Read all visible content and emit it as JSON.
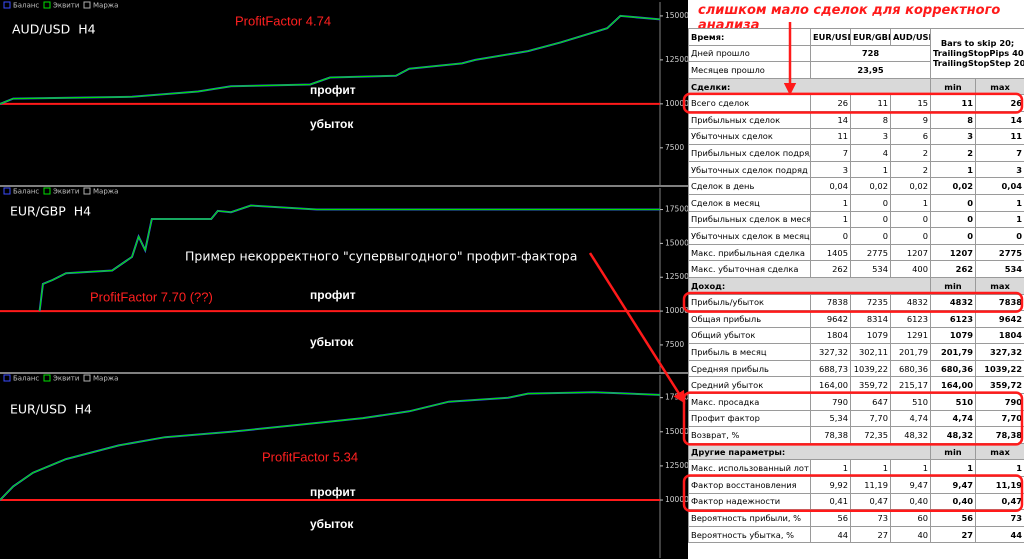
{
  "chart_data": [
    {
      "type": "line",
      "title": "AUD/USD  H4",
      "annotations": [
        "ProfitFactor 4.74",
        "профит",
        "убыток"
      ],
      "x": [
        0,
        2,
        20,
        30,
        35,
        47,
        50,
        60,
        62,
        70,
        72,
        80,
        85,
        92,
        94,
        100
      ],
      "xlim": [
        0,
        100
      ],
      "ylim": [
        5500,
        15450
      ],
      "yticks": [
        7500,
        10000,
        12500,
        15000
      ],
      "reference_line": 10000,
      "reference_color": "#ff1a1a",
      "series": [
        {
          "name": "Баланс",
          "color": "#3a4cff",
          "values": [
            10000,
            10300,
            10400,
            10700,
            11000,
            11100,
            11500,
            11600,
            12000,
            12300,
            12500,
            13000,
            13500,
            14300,
            15000,
            14800
          ]
        },
        {
          "name": "Эквити",
          "color": "#00e000",
          "values": [
            10000,
            10300,
            10400,
            10700,
            11000,
            11100,
            11500,
            11600,
            12000,
            12300,
            12500,
            13000,
            13500,
            14300,
            15000,
            14800
          ]
        }
      ],
      "extra_legend": [
        {
          "name": "Маржа",
          "color": "#b0b0b0"
        }
      ]
    },
    {
      "type": "line",
      "title": "EUR/GBP  H4",
      "annotations": [
        "ProfitFactor 7.70 (??)",
        "профит",
        "убыток"
      ],
      "x": [
        6,
        6.5,
        8,
        10,
        17,
        20,
        21,
        22,
        23,
        32,
        33,
        35,
        38,
        48,
        100
      ],
      "xlim": [
        0,
        100
      ],
      "ylim": [
        5500,
        18500
      ],
      "yticks": [
        7500,
        10000,
        12500,
        15000,
        17500
      ],
      "reference_line": 10000,
      "reference_color": "#ff1a1a",
      "series": [
        {
          "name": "Баланс",
          "color": "#3a4cff",
          "values": [
            10000,
            12000,
            12300,
            12800,
            13000,
            14000,
            15500,
            14500,
            16800,
            16800,
            17400,
            17300,
            17800,
            17500,
            17500
          ]
        },
        {
          "name": "Эквити",
          "color": "#00e000",
          "values": [
            10000,
            12000,
            12300,
            12800,
            13000,
            14000,
            15500,
            14500,
            16800,
            16800,
            17400,
            17300,
            17800,
            17500,
            17500
          ]
        }
      ],
      "extra_legend": [
        {
          "name": "Маржа",
          "color": "#b0b0b0"
        }
      ]
    },
    {
      "type": "line",
      "title": "EUR/USD  H4",
      "annotations": [
        "ProfitFactor 5.34",
        "профит",
        "убыток"
      ],
      "x": [
        0,
        2,
        5,
        10,
        18,
        25,
        35,
        45,
        55,
        62,
        68,
        77,
        80,
        90,
        100
      ],
      "xlim": [
        0,
        100
      ],
      "ylim": [
        5900,
        18500
      ],
      "yticks": [
        10000,
        12500,
        15000,
        17500
      ],
      "reference_line": 10000,
      "reference_color": "#ff1a1a",
      "series": [
        {
          "name": "Баланс",
          "color": "#3a4cff",
          "values": [
            10000,
            11000,
            12000,
            13000,
            14000,
            14600,
            15000,
            15500,
            16000,
            16500,
            17200,
            17500,
            17800,
            17900,
            17700
          ]
        },
        {
          "name": "Эквити",
          "color": "#00e000",
          "values": [
            10000,
            11000,
            12000,
            13000,
            14000,
            14600,
            15000,
            15500,
            16000,
            16500,
            17200,
            17500,
            17800,
            17900,
            17700
          ]
        }
      ],
      "extra_legend": [
        {
          "name": "Маржа",
          "color": "#b0b0b0"
        }
      ]
    }
  ],
  "note": "Пример некорректного \"супервыгодного\" профит-фактора",
  "table_note": "слишком мало сделок для корректного анализа",
  "table": {
    "header": [
      "Время:",
      "EUR/USD",
      "EUR/GBP",
      "AUD/USD"
    ],
    "settings": [
      "Bars to skip 20;",
      "TrailingStopPips 40;",
      "TrailingStopStep 20"
    ],
    "summary": [
      [
        "Дней прошло",
        "728"
      ],
      [
        "Месяцев прошло",
        "23,95"
      ]
    ],
    "sections": [
      {
        "title": "Сделки:",
        "min": "min",
        "max": "max",
        "rows": [
          [
            "Всего сделок",
            "26",
            "11",
            "15",
            "11",
            "26"
          ],
          [
            "Прибыльных сделок",
            "14",
            "8",
            "9",
            "8",
            "14"
          ],
          [
            "Убыточных сделок",
            "11",
            "3",
            "6",
            "3",
            "11"
          ],
          [
            "Прибыльных сделок подряд",
            "7",
            "4",
            "2",
            "2",
            "7"
          ],
          [
            "Убыточных сделок подряд",
            "3",
            "1",
            "2",
            "1",
            "3"
          ],
          [
            "Сделок в день",
            "0,04",
            "0,02",
            "0,02",
            "0,02",
            "0,04"
          ],
          [
            "Сделок в месяц",
            "1",
            "0",
            "1",
            "0",
            "1"
          ],
          [
            "Прибыльных сделок в месяц",
            "1",
            "0",
            "0",
            "0",
            "1"
          ],
          [
            "Убыточных сделок в месяц",
            "0",
            "0",
            "0",
            "0",
            "0"
          ],
          [
            "Макс. прибыльная сделка",
            "1405",
            "2775",
            "1207",
            "1207",
            "2775"
          ],
          [
            "Макс. убыточная сделка",
            "262",
            "534",
            "400",
            "262",
            "534"
          ]
        ]
      },
      {
        "title": "Доход:",
        "min": "min",
        "max": "max",
        "rows": [
          [
            "Прибыль/убыток",
            "7838",
            "7235",
            "4832",
            "4832",
            "7838"
          ],
          [
            "Общая прибыль",
            "9642",
            "8314",
            "6123",
            "6123",
            "9642"
          ],
          [
            "Общий убыток",
            "1804",
            "1079",
            "1291",
            "1079",
            "1804"
          ],
          [
            "Прибыль в месяц",
            "327,32",
            "302,11",
            "201,79",
            "201,79",
            "327,32"
          ],
          [
            "Средняя прибыль",
            "688,73",
            "1039,22",
            "680,36",
            "680,36",
            "1039,22"
          ],
          [
            "Средний убыток",
            "164,00",
            "359,72",
            "215,17",
            "164,00",
            "359,72"
          ],
          [
            "Макс. просадка",
            "790",
            "647",
            "510",
            "510",
            "790"
          ],
          [
            "Профит фактор",
            "5,34",
            "7,70",
            "4,74",
            "4,74",
            "7,70"
          ],
          [
            "Возврат, %",
            "78,38",
            "72,35",
            "48,32",
            "48,32",
            "78,38"
          ]
        ]
      },
      {
        "title": "Другие параметры:",
        "min": "min",
        "max": "max",
        "rows": [
          [
            "Макс. использованный лот",
            "1",
            "1",
            "1",
            "1",
            "1"
          ],
          [
            "Фактор восстановления",
            "9,92",
            "11,19",
            "9,47",
            "9,47",
            "11,19"
          ],
          [
            "Фактор надежности",
            "0,41",
            "0,47",
            "0,40",
            "0,40",
            "0,47"
          ],
          [
            "Вероятность прибыли, %",
            "56",
            "73",
            "60",
            "56",
            "73"
          ],
          [
            "Вероятность убытка, %",
            "44",
            "27",
            "40",
            "27",
            "44"
          ]
        ]
      }
    ]
  }
}
